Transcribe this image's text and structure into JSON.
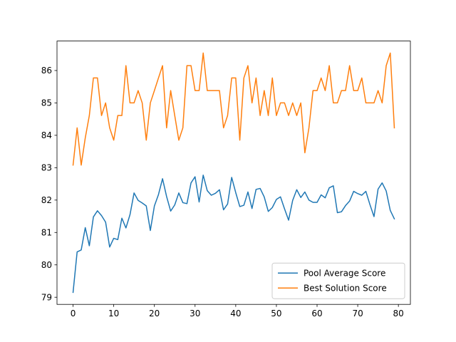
{
  "chart_data": {
    "type": "line",
    "x": [
      0,
      1,
      2,
      3,
      4,
      5,
      6,
      7,
      8,
      9,
      10,
      11,
      12,
      13,
      14,
      15,
      16,
      17,
      18,
      19,
      20,
      21,
      22,
      23,
      24,
      25,
      26,
      27,
      28,
      29,
      30,
      31,
      32,
      33,
      34,
      35,
      36,
      37,
      38,
      39,
      40,
      41,
      42,
      43,
      44,
      45,
      46,
      47,
      48,
      49,
      50,
      51,
      52,
      53,
      54,
      55,
      56,
      57,
      58,
      59,
      60,
      61,
      62,
      63,
      64,
      65,
      66,
      67,
      68,
      69,
      70,
      71,
      72,
      73,
      74,
      75,
      76,
      77,
      78,
      79
    ],
    "series": [
      {
        "name": "Pool Average Score",
        "color": "#1f77b4",
        "values": [
          79.15,
          80.4,
          80.46,
          81.15,
          80.59,
          81.48,
          81.67,
          81.52,
          81.32,
          80.55,
          80.82,
          80.78,
          81.44,
          81.14,
          81.55,
          82.22,
          81.99,
          81.91,
          81.82,
          81.06,
          81.82,
          82.17,
          82.66,
          82.11,
          81.66,
          81.85,
          82.22,
          81.92,
          81.89,
          82.53,
          82.72,
          81.94,
          82.77,
          82.29,
          82.15,
          82.21,
          82.32,
          81.7,
          81.88,
          82.7,
          82.23,
          81.8,
          81.84,
          82.25,
          81.74,
          82.33,
          82.36,
          82.1,
          81.65,
          81.77,
          82.02,
          82.1,
          81.73,
          81.38,
          81.99,
          82.32,
          82.08,
          82.25,
          82.0,
          81.93,
          81.93,
          82.16,
          82.07,
          82.38,
          82.44,
          81.61,
          81.64,
          81.83,
          81.97,
          82.27,
          82.2,
          82.15,
          82.27,
          81.86,
          81.49,
          82.34,
          82.53,
          82.28,
          81.68,
          81.42
        ]
      },
      {
        "name": "Best Solution Score",
        "color": "#ff7f0e",
        "values": [
          83.08,
          84.23,
          83.08,
          83.92,
          84.61,
          85.77,
          85.77,
          84.61,
          85.0,
          84.23,
          83.85,
          84.61,
          84.61,
          86.15,
          85.0,
          85.0,
          85.38,
          85.0,
          83.85,
          85.0,
          85.38,
          85.77,
          86.15,
          84.23,
          85.38,
          84.61,
          83.85,
          84.23,
          86.15,
          86.15,
          85.38,
          85.38,
          86.54,
          85.38,
          85.38,
          85.38,
          85.38,
          84.23,
          84.61,
          85.77,
          85.77,
          83.85,
          85.77,
          86.15,
          85.0,
          85.77,
          84.61,
          85.38,
          84.61,
          85.77,
          84.61,
          85.0,
          85.0,
          84.61,
          85.0,
          84.61,
          85.0,
          83.46,
          84.23,
          85.38,
          85.38,
          85.77,
          85.38,
          86.15,
          85.0,
          85.0,
          85.38,
          85.38,
          86.15,
          85.38,
          85.38,
          85.77,
          85.0,
          85.0,
          85.0,
          85.38,
          85.0,
          86.15,
          86.54,
          84.23
        ]
      }
    ],
    "x_ticks": [
      0,
      10,
      20,
      30,
      40,
      50,
      60,
      70,
      80
    ],
    "y_ticks": [
      79,
      80,
      81,
      82,
      83,
      84,
      85,
      86
    ],
    "xlim": [
      -3.95,
      82.95
    ],
    "ylim": [
      78.78,
      86.91
    ],
    "title": "",
    "xlabel": "",
    "ylabel": "",
    "grid": false,
    "legend_position": "lower-right"
  }
}
